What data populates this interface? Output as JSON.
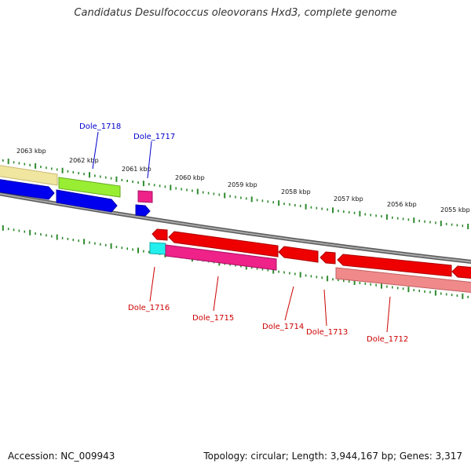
{
  "title": "Candidatus Desulfococcus oleovorans Hxd3, complete genome",
  "footer": {
    "accession": "Accession: NC_009943",
    "topology": "Topology: circular; Length: 3,944,167 bp; Genes: 3,317"
  },
  "colors": {
    "ruler_tick": "#2e8b2e",
    "backbone": "#808080",
    "label_forward": "#0000cc",
    "label_reverse": "#cc0000"
  },
  "kbp_labels": [
    "2063 kbp",
    "2062 kbp",
    "2061 kbp",
    "2060 kbp",
    "2059 kbp",
    "2058 kbp",
    "2057 kbp",
    "2056 kbp",
    "2055 kbp"
  ],
  "gene_labels": {
    "forward": [
      "Dole_1718",
      "Dole_1717"
    ],
    "reverse": [
      "Dole_1716",
      "Dole_1715",
      "Dole_1714",
      "Dole_1713",
      "Dole_1712"
    ]
  }
}
